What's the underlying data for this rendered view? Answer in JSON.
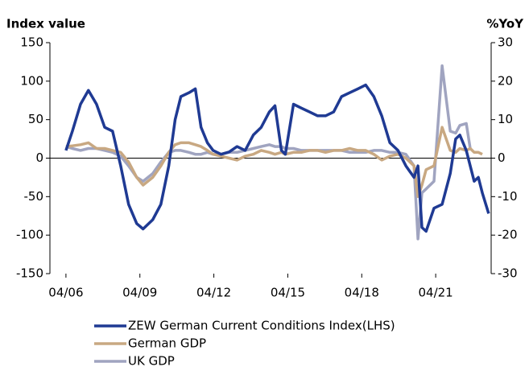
{
  "chart_data": {
    "type": "line",
    "ylabel": "Index value",
    "y2label": "%YoY",
    "x": [
      2006.25,
      2006.51,
      2006.84,
      2007.16,
      2007.49,
      2007.82,
      2008.14,
      2008.47,
      2008.79,
      2009.12,
      2009.38,
      2009.77,
      2010.1,
      2010.42,
      2010.68,
      2010.91,
      2011.24,
      2011.5,
      2011.73,
      2011.99,
      2012.22,
      2012.54,
      2012.87,
      2013.19,
      2013.52,
      2013.85,
      2014.17,
      2014.5,
      2014.73,
      2014.99,
      2015.15,
      2015.48,
      2015.8,
      2016.13,
      2016.46,
      2016.78,
      2017.11,
      2017.43,
      2017.76,
      2018.09,
      2018.41,
      2018.74,
      2019.06,
      2019.39,
      2019.72,
      2020.04,
      2020.37,
      2020.53,
      2020.69,
      2020.86,
      2021.18,
      2021.51,
      2021.84,
      2022.06,
      2022.23,
      2022.49,
      2022.65,
      2022.81,
      2022.98,
      2023.14,
      2023.4
    ],
    "xlim": [
      2005.6,
      2023.5
    ],
    "xticks": [
      {
        "value": 2006.25,
        "label": "04/06"
      },
      {
        "value": 2009.25,
        "label": "04/09"
      },
      {
        "value": 2012.25,
        "label": "04/12"
      },
      {
        "value": 2015.25,
        "label": "04/15"
      },
      {
        "value": 2018.25,
        "label": "04/18"
      },
      {
        "value": 2021.25,
        "label": "04/21"
      }
    ],
    "ylim": [
      -150,
      150
    ],
    "yticks": [
      -150,
      -100,
      -50,
      0,
      50,
      100,
      150
    ],
    "y2lim": [
      -30,
      30
    ],
    "y2ticks": [
      -30,
      -20,
      -10,
      0,
      10,
      20,
      30
    ],
    "series": [
      {
        "name": "ZEW German Current Conditions Index(LHS)",
        "color": "#1f3a93",
        "axis": "y",
        "values": [
          10,
          35,
          70,
          88,
          70,
          40,
          35,
          -10,
          -60,
          -85,
          -92,
          -80,
          -60,
          -10,
          50,
          80,
          85,
          90,
          40,
          20,
          10,
          5,
          8,
          15,
          10,
          30,
          40,
          60,
          68,
          10,
          5,
          70,
          65,
          60,
          55,
          55,
          60,
          80,
          85,
          90,
          95,
          80,
          55,
          20,
          10,
          -10,
          -25,
          -10,
          -90,
          -95,
          -65,
          -60,
          -20,
          25,
          30,
          10,
          -10,
          -30,
          -25,
          -45,
          -72
        ]
      },
      {
        "name": "German GDP",
        "color": "#c8a882",
        "axis": "y2",
        "values": [
          3,
          3.2,
          3.5,
          4,
          2.5,
          2.5,
          2,
          1.5,
          -1,
          -5,
          -7,
          -5,
          -2,
          1.5,
          3.5,
          4,
          4,
          3.5,
          3,
          2,
          1,
          0.5,
          0,
          -0.5,
          0.5,
          1,
          2,
          1.5,
          1,
          1.5,
          1,
          1.5,
          1.5,
          2,
          2,
          1.5,
          2,
          2,
          2.5,
          2,
          2,
          1,
          -0.5,
          0.5,
          1,
          0,
          -2,
          -10,
          -7,
          -3,
          -2,
          8,
          2,
          1.5,
          2.5,
          2,
          2.5,
          1.5,
          1.5,
          1,
          null
        ]
      },
      {
        "name": "UK GDP",
        "color": "#a0a4c0",
        "axis": "y2",
        "values": [
          3,
          2.5,
          2,
          2.5,
          2.5,
          2,
          1.5,
          0.5,
          -2,
          -5,
          -6,
          -4,
          -1,
          1.5,
          2,
          2,
          1.5,
          1,
          1,
          1.5,
          1,
          1,
          1.5,
          1.5,
          2,
          2.5,
          3,
          3.5,
          3,
          3,
          2.5,
          2.5,
          2,
          2,
          2,
          2,
          2,
          2,
          1.5,
          1.5,
          1.5,
          2,
          2,
          1.5,
          1.5,
          1,
          -2,
          -21,
          -9,
          -8,
          -6,
          24,
          7,
          6.5,
          8.5,
          9,
          2.5,
          null,
          null,
          null,
          null
        ]
      }
    ]
  }
}
